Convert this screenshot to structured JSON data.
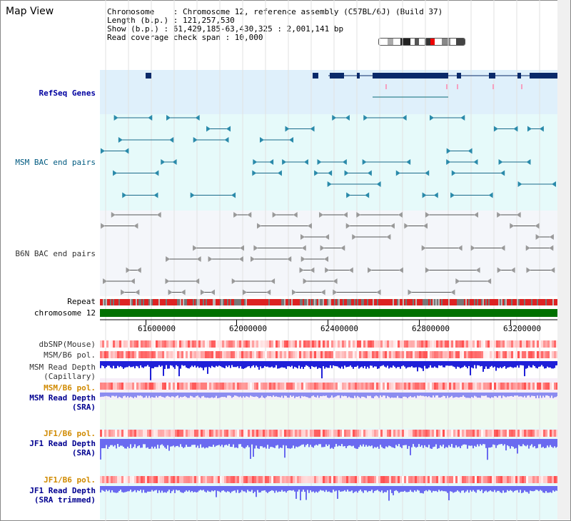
{
  "header": {
    "title": "Map View",
    "info": {
      "chromosome": "Chromosome    : Chromosome 12, reference assembly (C57BL/6J) (Build 37)",
      "length": "Length (b.p.) : 121,257,530",
      "show": "Show (b.p.) : 61,429,185-63,430,325 : 2,001,141 bp",
      "span": "Read coverage check span : 10,000"
    }
  },
  "tracks": {
    "refseq": "RefSeq Genes",
    "msm_bac": "MSM BAC end pairs",
    "b6n_bac": "B6N BAC end pairs",
    "repeat": "Repeat",
    "chromosome": "chromosome 12",
    "dbsnp": "dbSNP(Mouse)",
    "msm_b6_pol": "MSM/B6 pol.",
    "msm_depth_cap_1": "MSM Read Depth",
    "msm_depth_cap_2": "(Capillary)",
    "msm_b6_pol2": "MSM/B6 pol.",
    "msm_depth_sra_1": "MSM Read Depth",
    "msm_depth_sra_2": "(SRA)",
    "jf1_b6_pol": "JF1/B6 pol.",
    "jf1_depth_sra_1": "JF1 Read Depth",
    "jf1_depth_sra_2": "(SRA)",
    "jf1_b6_pol2": "JF1/B6 pol.",
    "jf1_depth_trim_1": "JF1 Read Depth",
    "jf1_depth_trim_2": "(SRA trimmed)"
  },
  "axis": {
    "ticks": [
      "61600000",
      "62000000",
      "62400000",
      "62800000",
      "63200000"
    ]
  },
  "colors": {
    "refseq_bg": "#dff0fb",
    "msm_bac_bg": "#e6fafa",
    "b6n_bac_bg": "#f4f6fa",
    "chromosome": "#007000",
    "repeat": "#d02020",
    "depth": "#3030e0"
  }
}
